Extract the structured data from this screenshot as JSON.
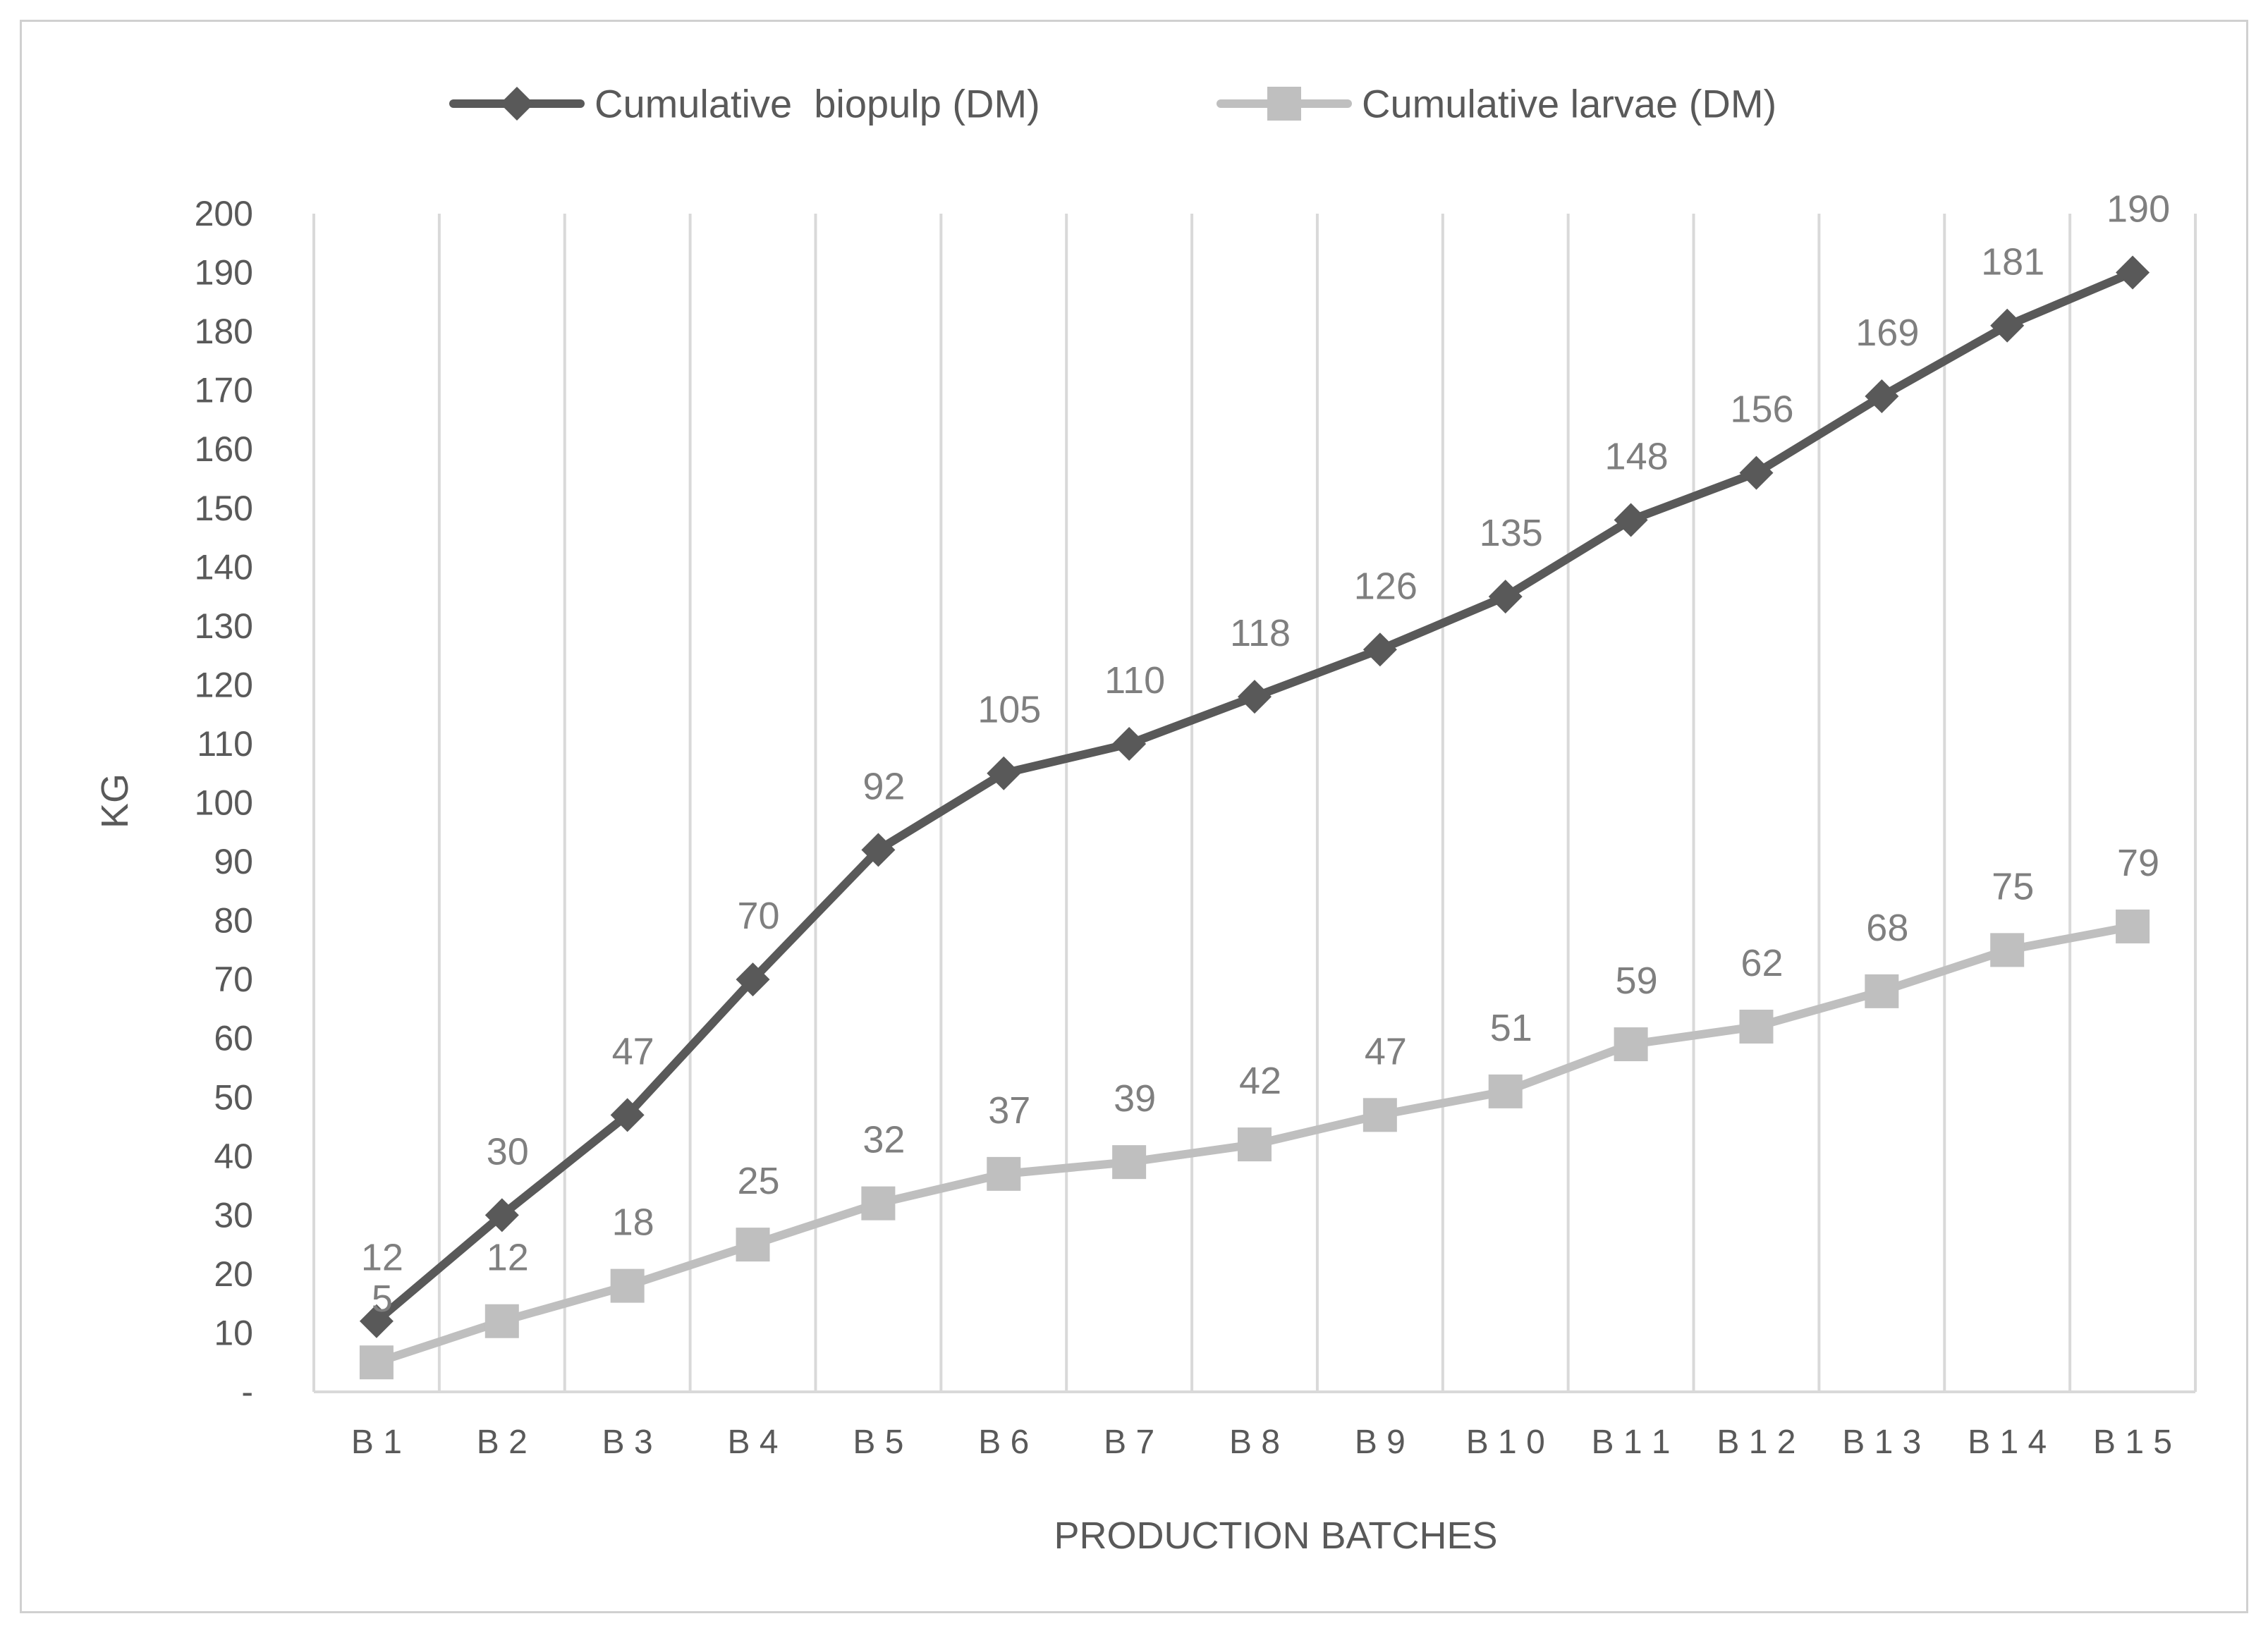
{
  "chart_data": {
    "type": "line",
    "categories": [
      "B1",
      "B2",
      "B3",
      "B4",
      "B5",
      "B6",
      "B7",
      "B8",
      "B9",
      "B10",
      "B11",
      "B12",
      "B13",
      "B14",
      "B15"
    ],
    "category_labels": [
      "B 1",
      "B 2",
      "B 3",
      "B 4",
      "B 5",
      "B 6",
      "B 7",
      "B 8",
      "B 9",
      "B 1 0",
      "B 1 1",
      "B 1 2",
      "B 1 3",
      "B 1 4",
      "B 1 5"
    ],
    "series": [
      {
        "name": "Cumulative  biopulp (DM)",
        "values": [
          12,
          30,
          47,
          70,
          92,
          105,
          110,
          118,
          126,
          135,
          148,
          156,
          169,
          181,
          190
        ],
        "color": "#595959",
        "marker": "diamond"
      },
      {
        "name": "Cumulative larvae (DM)",
        "values": [
          5,
          12,
          18,
          25,
          32,
          37,
          39,
          42,
          47,
          51,
          59,
          62,
          68,
          75,
          79
        ],
        "color": "#bfbfbf",
        "marker": "square"
      }
    ],
    "title": "",
    "xlabel": "PRODUCTION BATCHES",
    "ylabel": "KG",
    "ylim": [
      0,
      200
    ],
    "ytick_step": 10,
    "ytick_labels": [
      "-",
      "10",
      "20",
      "30",
      "40",
      "50",
      "60",
      "70",
      "80",
      "90",
      "100",
      "110",
      "120",
      "130",
      "140",
      "150",
      "160",
      "170",
      "180",
      "190",
      "200"
    ],
    "grid": "vertical",
    "legend": "top-center",
    "data_label_color": "#7f7f7f",
    "axis_text_color": "#595959",
    "grid_color": "#d9d9d9"
  }
}
